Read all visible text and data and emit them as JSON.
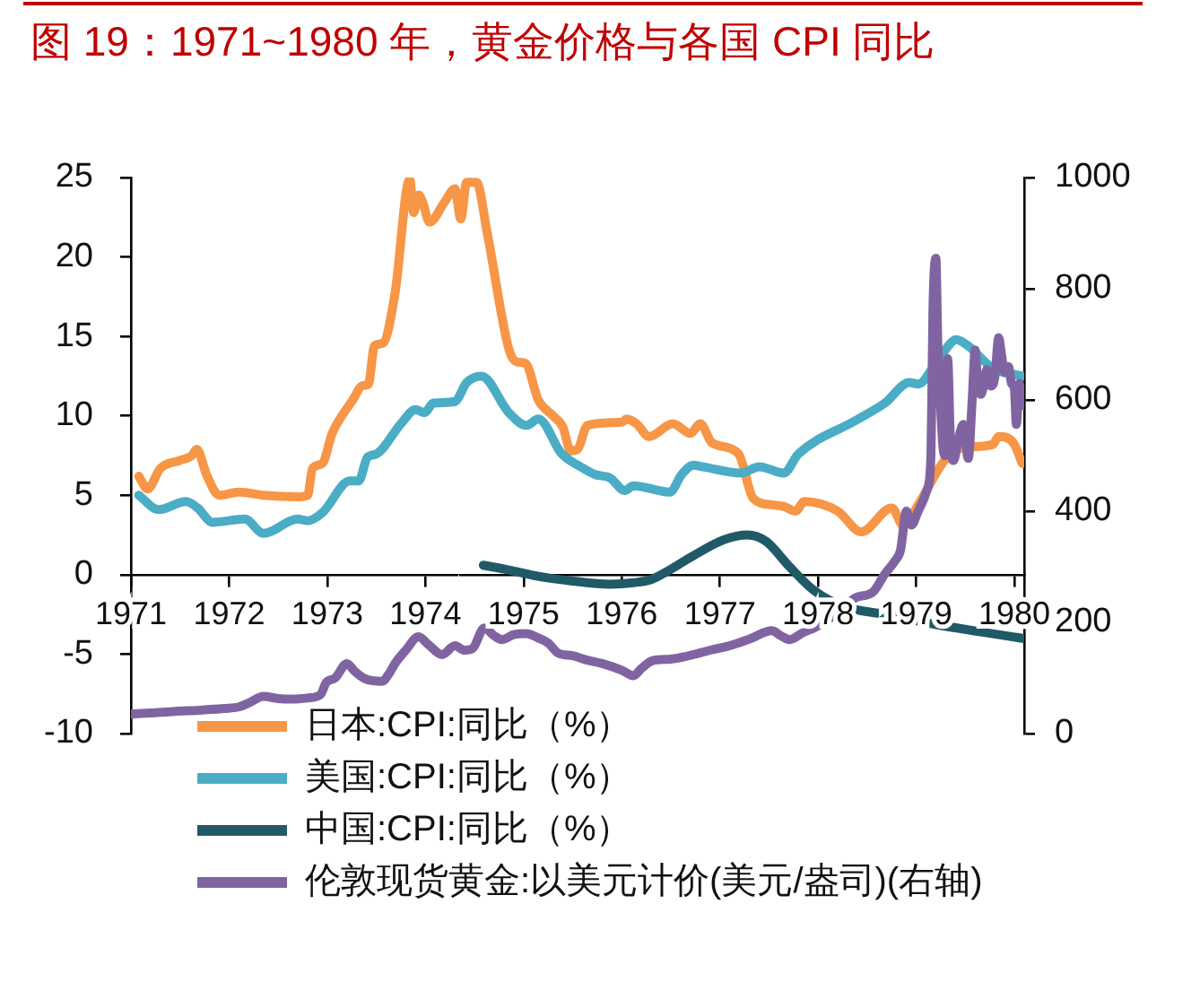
{
  "chart_data": {
    "type": "line",
    "title": "图 19：1971~1980 年，黄金价格与各国 CPI 同比",
    "xlim": [
      1971,
      1980.1
    ],
    "xticks": [
      1971,
      1972,
      1973,
      1974,
      1975,
      1976,
      1977,
      1978,
      1979,
      1980
    ],
    "ylim": [
      -10,
      25
    ],
    "yticks": [
      -10,
      -5,
      0,
      5,
      10,
      15,
      20,
      25
    ],
    "y2lim": [
      0,
      1000
    ],
    "y2ticks": [
      0,
      200,
      400,
      600,
      800,
      1000
    ],
    "legend": "bottom left",
    "series": [
      {
        "name": "日本:CPI:同比（%）",
        "color": "#f79646",
        "x": [
          1971.08,
          1971.17,
          1971.3,
          1971.5,
          1971.62,
          1971.67,
          1971.77,
          1971.9,
          1972.1,
          1972.35,
          1972.7,
          1972.8,
          1972.85,
          1972.95,
          1973.05,
          1973.26,
          1973.36,
          1973.42,
          1973.48,
          1973.57,
          1973.69,
          1973.84,
          1973.88,
          1973.93,
          1973.97,
          1974.04,
          1974.2,
          1974.3,
          1974.36,
          1974.42,
          1974.52,
          1974.63,
          1974.85,
          1974.93,
          1975.02,
          1975.15,
          1975.3,
          1975.4,
          1975.48,
          1975.55,
          1975.65,
          1976.0,
          1976.05,
          1976.15,
          1976.28,
          1976.52,
          1976.7,
          1976.8,
          1976.92,
          1977.19,
          1977.34,
          1977.53,
          1977.65,
          1977.77,
          1977.86,
          1978.2,
          1978.44,
          1978.75,
          1978.87,
          1979.02,
          1979.29,
          1979.48,
          1979.78,
          1979.84,
          1979.99,
          1980.08
        ],
        "values": [
          6.2,
          5.4,
          6.7,
          7.2,
          7.5,
          7.9,
          6.3,
          5.0,
          5.2,
          5.0,
          4.9,
          5.0,
          6.7,
          7.0,
          8.9,
          11.0,
          11.9,
          12.0,
          14.4,
          14.6,
          17.7,
          24.9,
          22.8,
          23.9,
          23.5,
          22.2,
          23.5,
          24.3,
          22.4,
          24.7,
          24.7,
          21.5,
          14.2,
          13.4,
          13.3,
          11.0,
          10.0,
          9.3,
          7.8,
          7.9,
          9.4,
          9.6,
          9.8,
          9.5,
          8.7,
          9.5,
          8.9,
          9.5,
          8.3,
          7.6,
          4.8,
          4.4,
          4.3,
          4.0,
          4.6,
          4.0,
          2.7,
          4.2,
          3.1,
          4.4,
          7.2,
          8.0,
          8.2,
          8.7,
          8.3,
          7.0
        ]
      },
      {
        "name": "美国:CPI:同比（%）",
        "color": "#4bacc6",
        "x": [
          1971.08,
          1971.28,
          1971.56,
          1971.68,
          1971.83,
          1972.16,
          1972.35,
          1972.7,
          1972.8,
          1972.95,
          1973.23,
          1973.32,
          1973.41,
          1973.5,
          1973.75,
          1973.9,
          1973.99,
          1974.08,
          1974.3,
          1974.42,
          1974.57,
          1974.85,
          1975.03,
          1975.15,
          1975.39,
          1975.58,
          1975.73,
          1975.88,
          1976.03,
          1976.12,
          1976.49,
          1976.61,
          1976.73,
          1976.82,
          1977.22,
          1977.4,
          1977.65,
          1977.8,
          1978.38,
          1978.68,
          1978.93,
          1979.02,
          1979.23,
          1979.41,
          1979.53,
          1979.78,
          1980.08
        ],
        "values": [
          5.0,
          4.1,
          4.6,
          4.2,
          3.3,
          3.5,
          2.6,
          3.5,
          3.4,
          3.9,
          5.9,
          5.9,
          7.4,
          7.6,
          9.5,
          10.4,
          10.2,
          10.8,
          10.9,
          12.1,
          12.5,
          10.2,
          9.4,
          9.8,
          7.6,
          6.8,
          6.3,
          6.1,
          5.3,
          5.6,
          5.2,
          6.3,
          6.9,
          6.8,
          6.4,
          6.8,
          6.4,
          7.6,
          9.7,
          10.8,
          12.1,
          12.0,
          13.6,
          14.8,
          14.4,
          13.0,
          12.5
        ]
      },
      {
        "name": "中国:CPI:同比（%）",
        "color": "#215968",
        "x": [
          1974.59,
          1974.85,
          1975.15,
          1975.5,
          1975.88,
          1976.12,
          1976.3,
          1976.43,
          1976.73,
          1977.04,
          1977.28,
          1977.47,
          1977.71,
          1977.96,
          1978.26,
          1978.69,
          1979.17,
          1979.66,
          1980.08
        ],
        "values": [
          0.6,
          0.3,
          -0.1,
          -0.4,
          -0.6,
          -0.5,
          -0.3,
          0.1,
          1.2,
          2.2,
          2.5,
          2.1,
          0.5,
          -1.0,
          -2.0,
          -2.5,
          -3.1,
          -3.6,
          -4.0
        ]
      },
      {
        "name": "伦敦现货黄金:以美元计价(美元/盎司)(右轴)",
        "color": "#8064a2",
        "axis": "y2",
        "x": [
          1971.0,
          1971.2,
          1971.45,
          1971.7,
          1971.95,
          1972.1,
          1972.2,
          1972.35,
          1972.5,
          1972.65,
          1972.8,
          1972.93,
          1972.99,
          1973.08,
          1973.2,
          1973.28,
          1973.38,
          1973.56,
          1973.63,
          1973.69,
          1973.8,
          1973.93,
          1974.03,
          1974.17,
          1974.3,
          1974.4,
          1974.48,
          1974.6,
          1974.7,
          1974.78,
          1974.9,
          1975.03,
          1975.15,
          1975.25,
          1975.35,
          1975.5,
          1975.65,
          1975.8,
          1976.0,
          1976.12,
          1976.2,
          1976.31,
          1976.5,
          1976.73,
          1976.9,
          1977.1,
          1977.3,
          1977.53,
          1977.62,
          1977.71,
          1977.85,
          1977.96,
          1978.1,
          1978.2,
          1978.38,
          1978.56,
          1978.68,
          1978.78,
          1978.84,
          1978.9,
          1978.95,
          1979.02,
          1979.11,
          1979.15,
          1979.17,
          1979.2,
          1979.22,
          1979.24,
          1979.27,
          1979.29,
          1979.32,
          1979.35,
          1979.38,
          1979.43,
          1979.48,
          1979.53,
          1979.57,
          1979.6,
          1979.63,
          1979.66,
          1979.72,
          1979.76,
          1979.8,
          1979.84,
          1979.87,
          1979.9,
          1979.94,
          1979.97,
          1980.0,
          1980.02,
          1980.05,
          1980.08
        ],
        "values": [
          35,
          37,
          40,
          42,
          45,
          48,
          55,
          67,
          63,
          62,
          64,
          70,
          92,
          100,
          126,
          112,
          99,
          94,
          108,
          126,
          150,
          174,
          160,
          142,
          158,
          150,
          153,
          190,
          176,
          169,
          178,
          180,
          172,
          163,
          145,
          140,
          132,
          126,
          114,
          104,
          117,
          131,
          134,
          142,
          150,
          158,
          170,
          185,
          176,
          169,
          182,
          190,
          205,
          217,
          244,
          255,
          287,
          310,
          330,
          400,
          375,
          400,
          438,
          500,
          760,
          855,
          700,
          620,
          520,
          500,
          674,
          520,
          491,
          530,
          556,
          495,
          600,
          690,
          620,
          610,
          655,
          625,
          640,
          712,
          680,
          650,
          660,
          630,
          620,
          556,
          630,
          590
        ]
      }
    ]
  }
}
